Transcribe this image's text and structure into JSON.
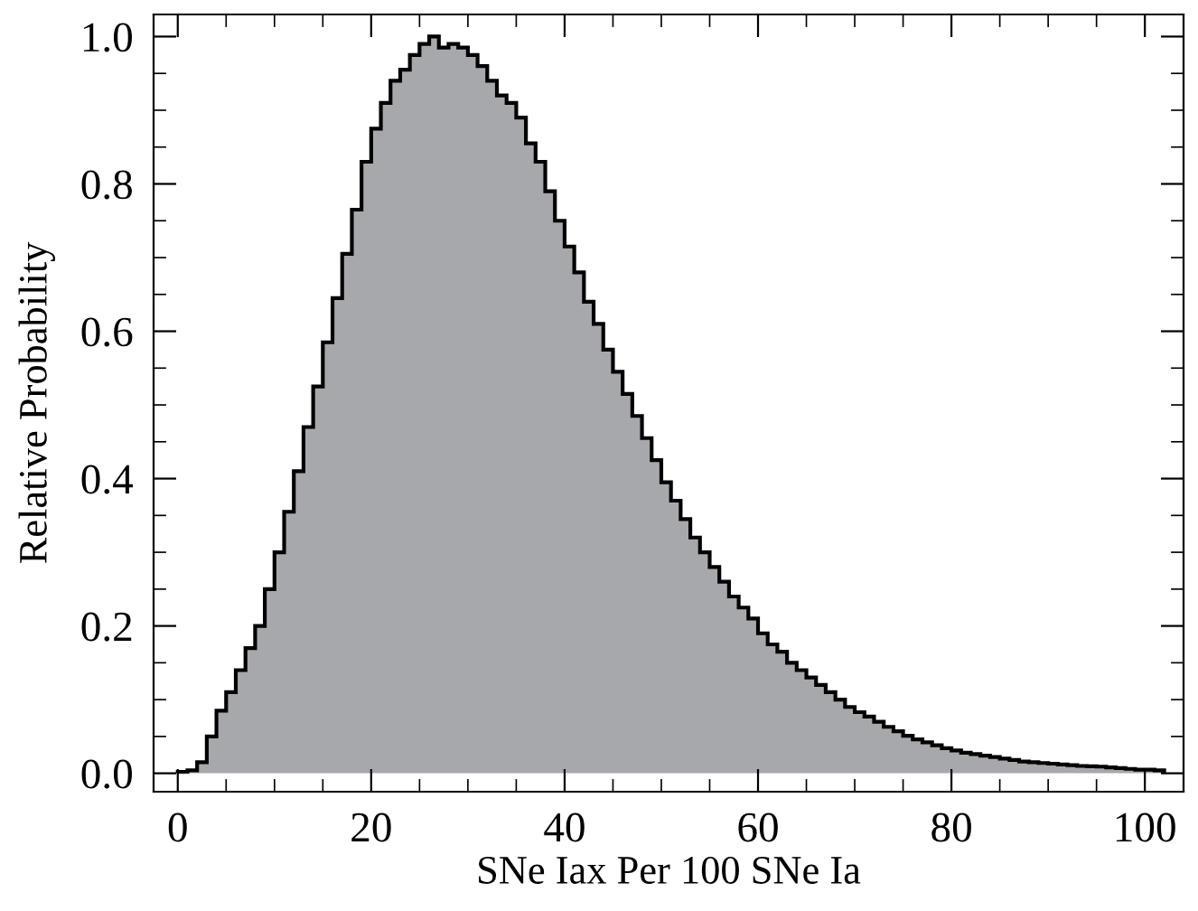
{
  "chart_data": {
    "type": "histogram",
    "xlabel": "SNe Iax Per 100 SNe Ia",
    "ylabel": "Relative Probability",
    "color": "#a7a8ab",
    "bins": [
      0,
      1,
      2,
      3,
      4,
      5,
      6,
      7,
      8,
      9,
      10,
      11,
      12,
      13,
      14,
      15,
      16,
      17,
      18,
      19,
      20,
      21,
      22,
      23,
      24,
      25,
      26,
      27,
      28,
      29,
      30,
      31,
      32,
      33,
      34,
      35,
      36,
      37,
      38,
      39,
      40,
      41,
      42,
      43,
      44,
      45,
      46,
      47,
      48,
      49,
      50,
      51,
      52,
      53,
      54,
      55,
      56,
      57,
      58,
      59,
      60,
      61,
      62,
      63,
      64,
      65,
      66,
      67,
      68,
      69,
      70,
      71,
      72,
      73,
      74,
      75,
      76,
      77,
      78,
      79,
      80,
      81,
      82,
      83,
      84,
      85,
      86,
      87,
      88,
      89,
      90,
      91,
      92,
      93,
      94,
      95,
      96,
      97,
      98,
      99,
      100,
      101,
      102
    ],
    "values": [
      0.002,
      0.004,
      0.015,
      0.05,
      0.085,
      0.11,
      0.14,
      0.17,
      0.2,
      0.25,
      0.3,
      0.355,
      0.41,
      0.47,
      0.525,
      0.585,
      0.645,
      0.705,
      0.765,
      0.83,
      0.875,
      0.91,
      0.94,
      0.955,
      0.975,
      0.99,
      1.0,
      0.985,
      0.99,
      0.985,
      0.975,
      0.96,
      0.94,
      0.92,
      0.91,
      0.89,
      0.855,
      0.83,
      0.79,
      0.75,
      0.715,
      0.68,
      0.64,
      0.61,
      0.575,
      0.545,
      0.515,
      0.485,
      0.455,
      0.425,
      0.395,
      0.37,
      0.345,
      0.32,
      0.3,
      0.28,
      0.26,
      0.24,
      0.225,
      0.21,
      0.19,
      0.175,
      0.165,
      0.15,
      0.14,
      0.13,
      0.12,
      0.11,
      0.1,
      0.09,
      0.083,
      0.077,
      0.07,
      0.063,
      0.057,
      0.051,
      0.046,
      0.042,
      0.038,
      0.034,
      0.031,
      0.028,
      0.026,
      0.024,
      0.022,
      0.02,
      0.018,
      0.016,
      0.015,
      0.014,
      0.013,
      0.012,
      0.011,
      0.01,
      0.0095,
      0.009,
      0.008,
      0.007,
      0.006,
      0.005,
      0.005,
      0.004
    ],
    "xlim": [
      -2.5,
      104
    ],
    "ylim": [
      -0.025,
      1.03
    ],
    "xticks": [
      0,
      20,
      40,
      60,
      80,
      100
    ],
    "yticks": [
      {
        "value": 0,
        "label": "0.0"
      },
      {
        "value": 0.2,
        "label": "0.2"
      },
      {
        "value": 0.4,
        "label": "0.4"
      },
      {
        "value": 0.6,
        "label": "0.6"
      },
      {
        "value": 0.8,
        "label": "0.8"
      },
      {
        "value": 1.0,
        "label": "1.0"
      }
    ],
    "grid": false
  }
}
